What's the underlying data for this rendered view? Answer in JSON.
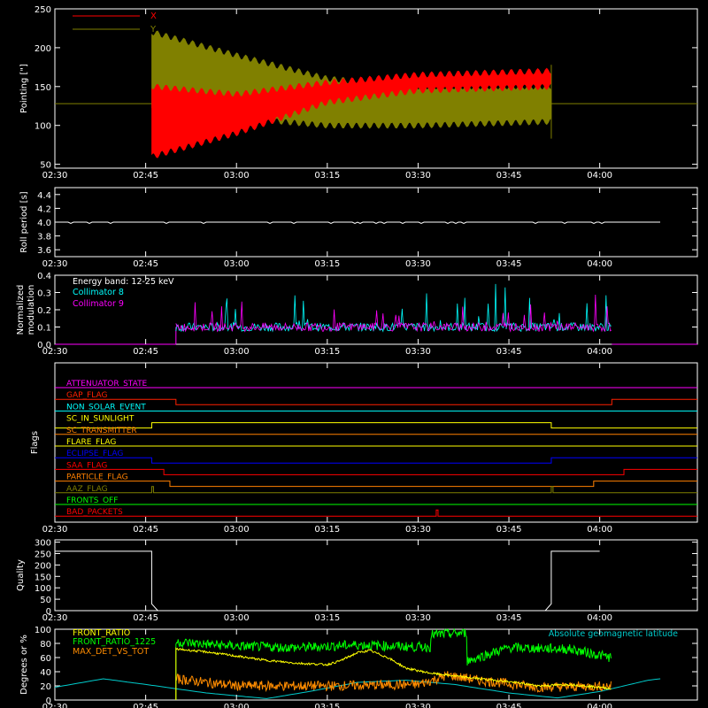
{
  "time_ticks": [
    "02:30",
    "02:45",
    "03:00",
    "03:15",
    "03:30",
    "03:45",
    "04:00"
  ],
  "time_range": [
    "02:30",
    "04:00"
  ],
  "colors": {
    "axes": "#ffffff",
    "x": "#ff0000",
    "y": "#808000",
    "collimator_8": "#00ffff",
    "collimator_9": "#ff00ff",
    "front_ratio": "#ffff00",
    "front_ratio_1225": "#00ff00",
    "max_det_vs_tot": "#ff8c00",
    "geomagnetic": "#00cccc"
  },
  "chart_data": [
    {
      "id": "pointing",
      "type": "line",
      "ylabel": "Pointing [\"]",
      "ylim": [
        45,
        250
      ],
      "yticks": [
        "50",
        "100",
        "150",
        "200",
        "250"
      ],
      "series": [
        {
          "name": "X",
          "color": "#ff0000",
          "baseline": 128,
          "start": "02:46",
          "end": "03:52",
          "envelope_low": [
            [
              "02:46",
              60
            ],
            [
              "03:00",
              90
            ],
            [
              "03:15",
              130
            ],
            [
              "03:30",
              145
            ],
            [
              "03:52",
              150
            ]
          ],
          "envelope_high": [
            [
              "02:46",
              150
            ],
            [
              "03:00",
              140
            ],
            [
              "03:15",
              155
            ],
            [
              "03:30",
              165
            ],
            [
              "03:52",
              170
            ]
          ]
        },
        {
          "name": "Y",
          "color": "#808000",
          "baseline": 128,
          "start": "02:46",
          "end": "03:52",
          "envelope_low": [
            [
              "02:46",
              120
            ],
            [
              "03:00",
              110
            ],
            [
              "03:15",
              100
            ],
            [
              "03:30",
              100
            ],
            [
              "03:52",
              105
            ]
          ],
          "envelope_high": [
            [
              "02:46",
              220
            ],
            [
              "03:00",
              190
            ],
            [
              "03:15",
              160
            ],
            [
              "03:30",
              150
            ],
            [
              "03:52",
              150
            ]
          ]
        }
      ]
    },
    {
      "id": "roll",
      "type": "line",
      "ylabel": "Roll period [s]",
      "ylim": [
        3.5,
        4.5
      ],
      "yticks": [
        "3.6",
        "3.8",
        "4.0",
        "4.2",
        "4.4"
      ],
      "series": [
        {
          "name": "",
          "color": "#ffffff",
          "value": 4.0
        }
      ]
    },
    {
      "id": "modulation",
      "type": "line",
      "ylabel": "Normalized modulation",
      "ylim": [
        0,
        0.4
      ],
      "yticks": [
        "0.0",
        "0.1",
        "0.2",
        "0.3",
        "0.4"
      ],
      "legend": {
        "energy_band": "Energy band: 12-25 keV",
        "c8": "Collimator 8",
        "c9": "Collimator 9"
      },
      "series": [
        {
          "name": "Collimator 8",
          "color": "#00ffff",
          "start": "02:50",
          "end": "04:02",
          "level": 0.1,
          "spike_max": 0.37
        },
        {
          "name": "Collimator 9",
          "color": "#ff00ff",
          "start": "02:50",
          "end": "04:02",
          "level": 0.1,
          "spike_max": 0.27
        }
      ]
    },
    {
      "id": "flags",
      "type": "line",
      "ylabel": "Flags",
      "flags": [
        {
          "name": "ATTENUATOR_STATE",
          "color": "#ff00ff",
          "transitions": []
        },
        {
          "name": "GAP_FLAG",
          "color": "#ff2000",
          "transitions": [
            [
              "02:50",
              "down"
            ],
            [
              "04:02",
              "up"
            ]
          ]
        },
        {
          "name": "NON_SOLAR_EVENT",
          "color": "#00ffff",
          "transitions": []
        },
        {
          "name": "SC_IN_SUNLIGHT",
          "color": "#ffff00",
          "transitions": [
            [
              "02:46",
              "up"
            ],
            [
              "03:52",
              "down"
            ]
          ]
        },
        {
          "name": "SC_TRANSMITTER",
          "color": "#ff8000",
          "transitions": []
        },
        {
          "name": "FLARE_FLAG",
          "color": "#ffff00",
          "transitions": []
        },
        {
          "name": "ECLIPSE_FLAG",
          "color": "#0000ff",
          "transitions": [
            [
              "02:46",
              "down"
            ],
            [
              "03:52",
              "up"
            ]
          ]
        },
        {
          "name": "SAA_FLAG",
          "color": "#ff0000",
          "transitions": [
            [
              "02:48",
              "down"
            ],
            [
              "04:04",
              "up"
            ]
          ]
        },
        {
          "name": "PARTICLE_FLAG",
          "color": "#ff8000",
          "transitions": [
            [
              "02:49",
              "down"
            ],
            [
              "03:59",
              "up"
            ]
          ]
        },
        {
          "name": "AAZ_FLAG",
          "color": "#808000",
          "transitions": [
            [
              "02:46",
              "pulse"
            ],
            [
              "03:52",
              "pulse"
            ]
          ]
        },
        {
          "name": "FRONTS_OFF",
          "color": "#00ff00",
          "transitions": []
        },
        {
          "name": "BAD_PACKETS",
          "color": "#ff0000",
          "transitions": [
            [
              "03:33",
              "pulse"
            ]
          ]
        }
      ]
    },
    {
      "id": "quality",
      "type": "line",
      "ylabel": "Quality",
      "ylim": [
        0,
        310
      ],
      "yticks": [
        "0",
        "50",
        "100",
        "150",
        "200",
        "250",
        "300"
      ],
      "series": [
        {
          "name": "",
          "color": "#ffffff",
          "points": [
            [
              "02:30",
              260
            ],
            [
              "02:46",
              260
            ],
            [
              "02:46",
              30
            ],
            [
              "02:47",
              0
            ],
            [
              "03:51",
              0
            ],
            [
              "03:52",
              30
            ],
            [
              "03:52",
              260
            ],
            [
              "04:00",
              260
            ]
          ]
        }
      ]
    },
    {
      "id": "ratios",
      "type": "line",
      "ylabel": "Degrees or %",
      "ylim": [
        0,
        100
      ],
      "yticks": [
        "0",
        "20",
        "40",
        "60",
        "80",
        "100"
      ],
      "legend_title_right": "Absolute geomagnetic latitude",
      "series": [
        {
          "name": "FRONT_RATIO",
          "color": "#ffff00",
          "points": [
            [
              "02:50",
              72
            ],
            [
              "02:55",
              68
            ],
            [
              "03:00",
              62
            ],
            [
              "03:05",
              56
            ],
            [
              "03:10",
              52
            ],
            [
              "03:15",
              50
            ],
            [
              "03:17",
              55
            ],
            [
              "03:20",
              67
            ],
            [
              "03:22",
              70
            ],
            [
              "03:25",
              60
            ],
            [
              "03:28",
              45
            ],
            [
              "03:32",
              38
            ],
            [
              "03:38",
              32
            ],
            [
              "03:45",
              26
            ],
            [
              "03:50",
              20
            ],
            [
              "03:55",
              22
            ],
            [
              "04:00",
              18
            ],
            [
              "04:02",
              16
            ]
          ]
        },
        {
          "name": "FRONT_RATIO_1225",
          "color": "#00ff00",
          "points": [
            [
              "02:50",
              82
            ],
            [
              "03:00",
              76
            ],
            [
              "03:10",
              74
            ],
            [
              "03:20",
              78
            ],
            [
              "03:30",
              75
            ],
            [
              "03:32",
              75
            ],
            [
              "03:32",
              92
            ],
            [
              "03:38",
              95
            ],
            [
              "03:38",
              55
            ],
            [
              "03:45",
              74
            ],
            [
              "03:55",
              72
            ],
            [
              "04:02",
              60
            ]
          ]
        },
        {
          "name": "MAX_DET_VS_TOT",
          "color": "#ff8c00",
          "points": [
            [
              "02:50",
              30
            ],
            [
              "03:00",
              20
            ],
            [
              "03:15",
              20
            ],
            [
              "03:30",
              22
            ],
            [
              "03:35",
              35
            ],
            [
              "03:40",
              28
            ],
            [
              "03:50",
              18
            ],
            [
              "04:02",
              20
            ]
          ]
        },
        {
          "name": "Absolute geomagnetic latitude",
          "color": "#00cccc",
          "points": [
            [
              "02:30",
              18
            ],
            [
              "02:38",
              30
            ],
            [
              "02:45",
              22
            ],
            [
              "02:55",
              10
            ],
            [
              "03:05",
              2
            ],
            [
              "03:12",
              12
            ],
            [
              "03:20",
              25
            ],
            [
              "03:28",
              28
            ],
            [
              "03:36",
              22
            ],
            [
              "03:45",
              10
            ],
            [
              "03:53",
              3
            ],
            [
              "04:00",
              12
            ],
            [
              "04:08",
              28
            ],
            [
              "04:10",
              30
            ]
          ]
        }
      ]
    }
  ]
}
